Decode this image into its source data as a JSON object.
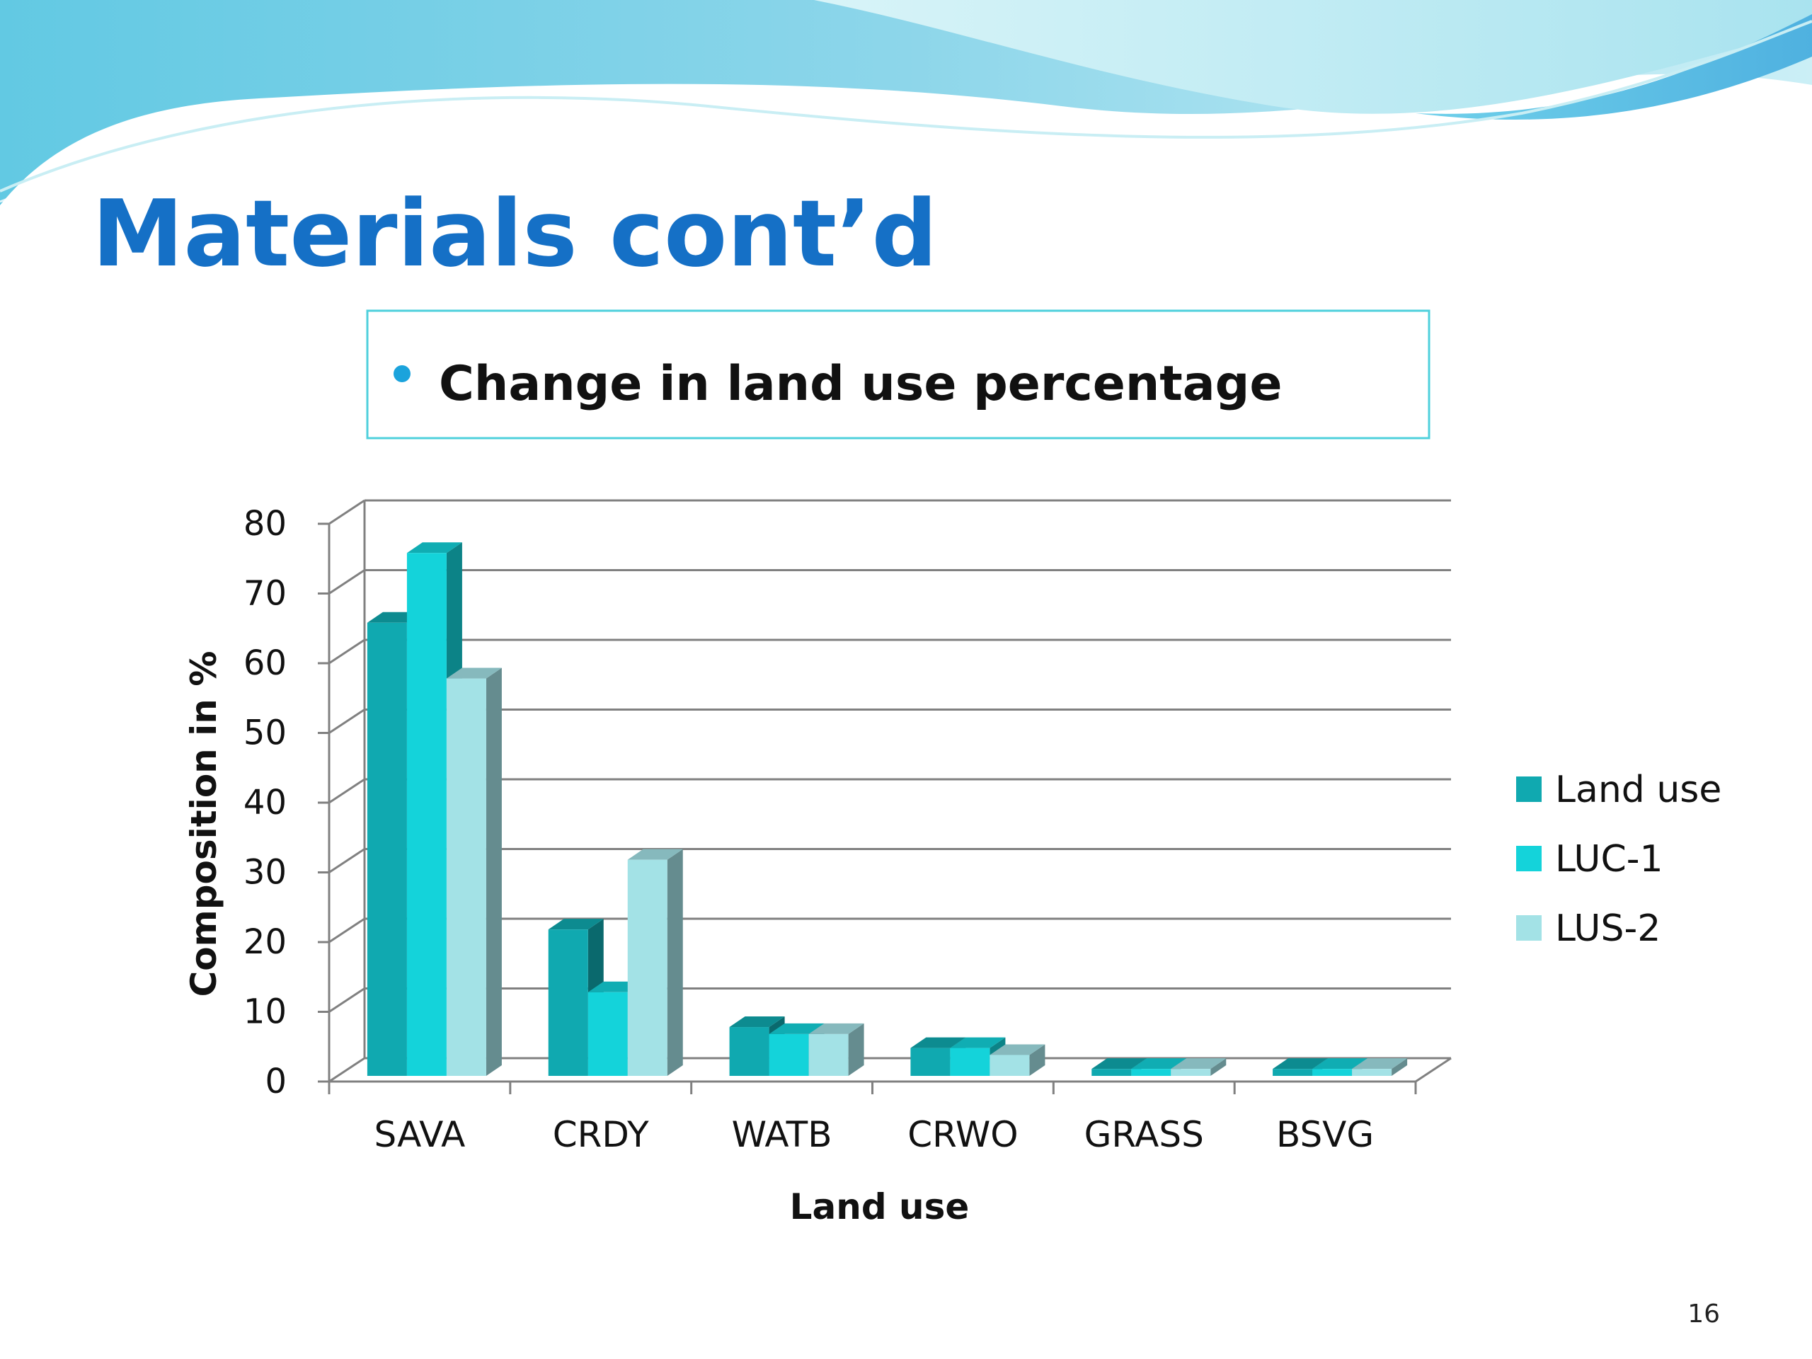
{
  "slide": {
    "title": "Materials cont’d",
    "bullet_text": "Change in land use percentage",
    "page_number": "16"
  },
  "colors": {
    "title": "#1570c6",
    "bullet": "#1ba3dc",
    "box_border": "#4fd0dc",
    "wave_light": "#cdf1f6",
    "wave_mid": "#8bd9e8",
    "wave_dark": "#5fb7de"
  },
  "chart_data": {
    "type": "bar",
    "style": "3d-clustered-column",
    "categories": [
      "SAVA",
      "CRDY",
      "WATB",
      "CRWO",
      "GRASS",
      "BSVG"
    ],
    "series": [
      {
        "name": "Land use",
        "color": "#10a9b0",
        "values": [
          65,
          21,
          7,
          4,
          1,
          1
        ]
      },
      {
        "name": "LUC-1",
        "color": "#14d3da",
        "values": [
          75,
          12,
          6,
          4,
          1,
          1
        ]
      },
      {
        "name": "LUS-2",
        "color": "#a3e2e6",
        "values": [
          57,
          31,
          6,
          3,
          1,
          1
        ]
      }
    ],
    "xlabel": "Land use",
    "ylabel": "Composition in %",
    "ylim": [
      0,
      80
    ],
    "yticks": [
      "0",
      "10",
      "20",
      "30",
      "40",
      "50",
      "60",
      "70",
      "80"
    ],
    "grid": true,
    "legend_position": "right"
  }
}
